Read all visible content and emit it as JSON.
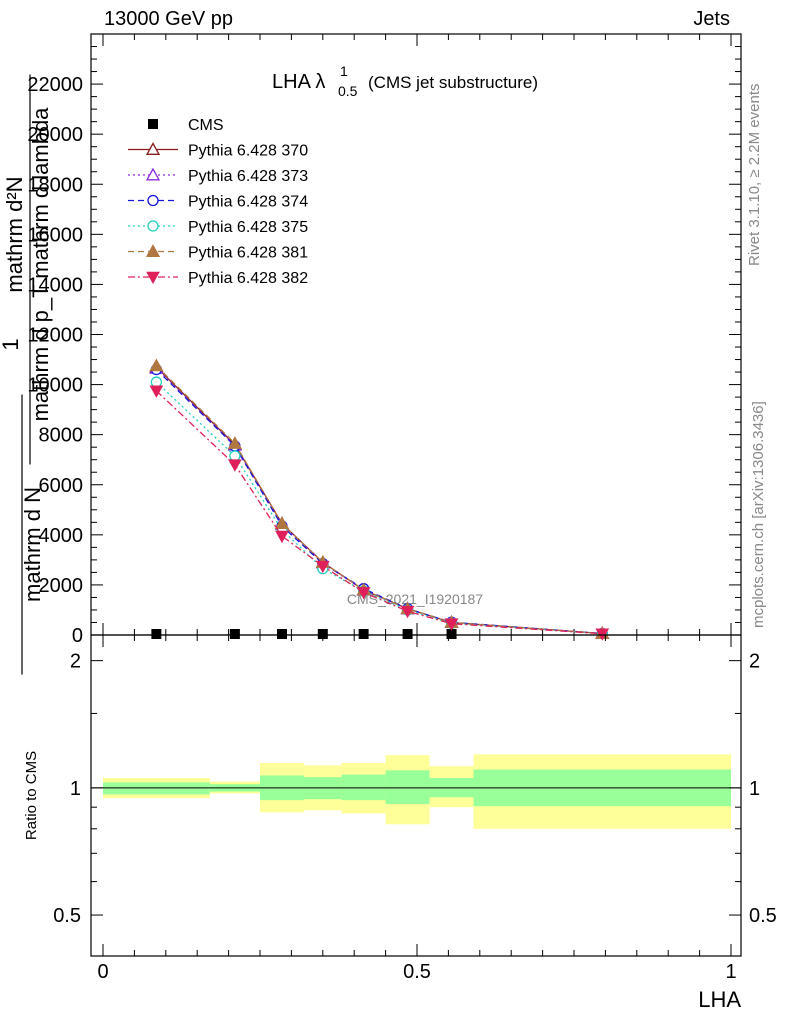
{
  "header": {
    "left": "13000 GeV pp",
    "right": "Jets"
  },
  "side_labels": {
    "rivet": "Rivet 3.1.10, ≥ 2.2M events",
    "mcplots": "mcplots.cern.ch [arXiv:1306.3436]"
  },
  "watermark": "CMS_2021_I1920187",
  "chart_data": [
    {
      "type": "line",
      "title": "LHA λ",
      "title_sup": "1",
      "title_sub": "0.5",
      "title_note": "(CMS jet substructure)",
      "ylabel_lines": [
        "1",
        "mathrm d N",
        "mathrm d p_T mathrm d lambda",
        "mathrm d²N"
      ],
      "xlim": [
        0,
        1
      ],
      "ylim": [
        0,
        24000
      ],
      "y_ticks": [
        0,
        2000,
        4000,
        6000,
        8000,
        10000,
        12000,
        14000,
        16000,
        18000,
        20000,
        22000
      ],
      "y_tick_labels": [
        "0",
        "2000",
        "4000",
        "6000",
        "8000",
        "10000",
        "12000",
        "14000",
        "16000",
        "18000",
        "20000",
        "22000"
      ],
      "x": [
        0.085,
        0.21,
        0.285,
        0.35,
        0.415,
        0.485,
        0.555,
        0.795
      ],
      "series": [
        {
          "name": "CMS",
          "color": "#000000",
          "marker": "square",
          "dash": "none",
          "values": [
            40,
            40,
            40,
            40,
            40,
            40,
            40,
            40
          ]
        },
        {
          "name": "Pythia 6.428 370",
          "color": "#8b1a1a",
          "marker": "triangle-open",
          "dash": "solid",
          "values": [
            10700,
            7600,
            4450,
            2900,
            1800,
            1050,
            500,
            60
          ]
        },
        {
          "name": "Pythia 6.428 373",
          "color": "#8a2be2",
          "marker": "triangle-open",
          "dash": "dotted",
          "values": [
            10650,
            7580,
            4420,
            2880,
            1790,
            1040,
            495,
            60
          ]
        },
        {
          "name": "Pythia 6.428 374",
          "color": "#1414dc",
          "marker": "circle-open",
          "dash": "dashed",
          "values": [
            10600,
            7550,
            4350,
            2850,
            1850,
            1050,
            510,
            60
          ]
        },
        {
          "name": "Pythia 6.428 375",
          "color": "#20d0c0",
          "marker": "circle-open",
          "dash": "dotted",
          "values": [
            10100,
            7150,
            4200,
            2650,
            1750,
            1000,
            470,
            55
          ]
        },
        {
          "name": "Pythia 6.428 381",
          "color": "#b07840",
          "marker": "triangle-filled",
          "dash": "dashed",
          "values": [
            10750,
            7650,
            4450,
            2900,
            1800,
            1050,
            500,
            60
          ]
        },
        {
          "name": "Pythia 6.428 382",
          "color": "#e0205a",
          "marker": "triangle-down-filled",
          "dash": "dashdot",
          "values": [
            9750,
            6800,
            3950,
            2750,
            1700,
            950,
            450,
            50
          ]
        }
      ]
    },
    {
      "type": "area",
      "title": "",
      "ylabel": "Ratio to CMS",
      "xlabel": "LHA",
      "xlim": [
        0,
        1
      ],
      "ylim": [
        0.4,
        2.3
      ],
      "y_scale": "log",
      "y_ticks": [
        0.5,
        1,
        2
      ],
      "y_tick_labels": [
        "0.5",
        "1",
        "2"
      ],
      "x_ticks": [
        0,
        0.5,
        1
      ],
      "x_tick_labels": [
        "0",
        "0.5",
        "1"
      ],
      "bins": [
        {
          "lo": 0.0,
          "hi": 0.17,
          "stat": [
            0.965,
            1.03
          ],
          "total": [
            0.945,
            1.055
          ]
        },
        {
          "lo": 0.17,
          "hi": 0.25,
          "stat": [
            0.98,
            1.02
          ],
          "total": [
            0.97,
            1.035
          ]
        },
        {
          "lo": 0.25,
          "hi": 0.32,
          "stat": [
            0.935,
            1.07
          ],
          "total": [
            0.875,
            1.145
          ]
        },
        {
          "lo": 0.32,
          "hi": 0.38,
          "stat": [
            0.94,
            1.06
          ],
          "total": [
            0.885,
            1.13
          ]
        },
        {
          "lo": 0.38,
          "hi": 0.45,
          "stat": [
            0.935,
            1.075
          ],
          "total": [
            0.87,
            1.145
          ]
        },
        {
          "lo": 0.45,
          "hi": 0.52,
          "stat": [
            0.915,
            1.1
          ],
          "total": [
            0.82,
            1.195
          ]
        },
        {
          "lo": 0.52,
          "hi": 0.59,
          "stat": [
            0.95,
            1.055
          ],
          "total": [
            0.9,
            1.125
          ]
        },
        {
          "lo": 0.59,
          "hi": 1.0,
          "stat": [
            0.905,
            1.105
          ],
          "total": [
            0.8,
            1.2
          ]
        }
      ],
      "reference": 1
    }
  ],
  "colors": {
    "stat_band": "#99ff99",
    "total_band": "#ffff99",
    "watermark": "#888888"
  }
}
